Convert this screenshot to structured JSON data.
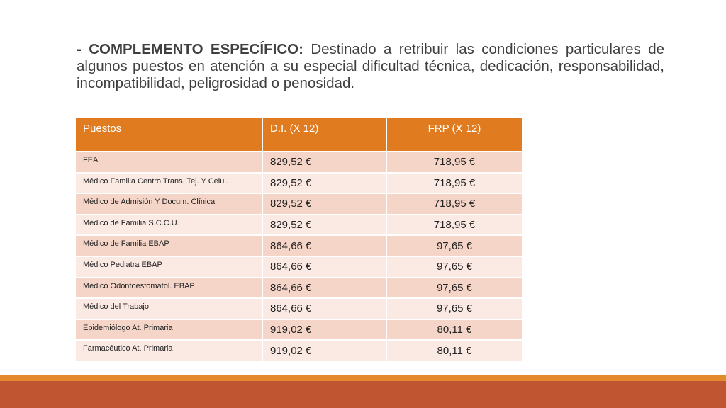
{
  "intro": {
    "lead": "- COMPLEMENTO ESPECÍFICO:",
    "body": "Destinado a retribuir las condiciones particulares de algunos puestos en atención a su especial dificultad técnica, dedicación, responsabilidad, incompatibilidad, peligrosidad o penosidad."
  },
  "table": {
    "headers": {
      "puestos": "Puestos",
      "di": "D.I. (X 12)",
      "frp": "FRP (X 12)"
    },
    "rows": [
      {
        "puesto": "FEA",
        "di": "829,52 €",
        "frp": "718,95 €"
      },
      {
        "puesto": "Médico Familia Centro Trans. Tej. Y Celul.",
        "di": "829,52 €",
        "frp": "718,95 €"
      },
      {
        "puesto": "Médico de Admisión Y Docum. Clínica",
        "di": "829,52 €",
        "frp": "718,95 €"
      },
      {
        "puesto": "Médico de Familia S.C.C.U.",
        "di": "829,52 €",
        "frp": "718,95 €"
      },
      {
        "puesto": "Médico de Familia EBAP",
        "di": "864,66 €",
        "frp": "97,65 €"
      },
      {
        "puesto": "Médico Pediatra EBAP",
        "di": "864,66 €",
        "frp": "97,65 €"
      },
      {
        "puesto": "Médico Odontoestomatol. EBAP",
        "di": "864,66 €",
        "frp": "97,65 €"
      },
      {
        "puesto": "Médico del Trabajo",
        "di": "864,66 €",
        "frp": "97,65 €"
      },
      {
        "puesto": "Epidemiólogo At. Primaria",
        "di": "919,02 €",
        "frp": "80,11 €"
      },
      {
        "puesto": "Farmacéutico At. Primaria",
        "di": "919,02  €",
        "frp": "80,11 €"
      }
    ]
  },
  "colors": {
    "header": "#e07b1f",
    "row_odd": "#f5d5c8",
    "row_even": "#fbeae4",
    "footer_thin": "#e38a2c",
    "footer_band": "#bf5631"
  }
}
